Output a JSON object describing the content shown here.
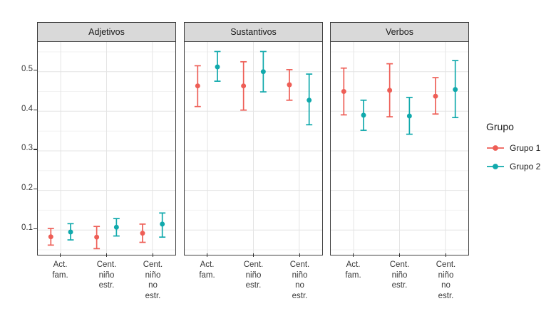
{
  "chart_data": {
    "type": "pointrange",
    "title": "",
    "facets": [
      "Adjetivos",
      "Sustantivos",
      "Verbos"
    ],
    "x_axis": {
      "label": "",
      "categories": [
        "Act.\nfam.",
        "Cent.\nniño\nestr.",
        "Cent.\nniño\nno estr."
      ]
    },
    "y_axis": {
      "label": "",
      "ticks": [
        "0.1",
        "0.2",
        "0.3",
        "0.4",
        "0.5"
      ],
      "tick_values": [
        0.1,
        0.2,
        0.3,
        0.4,
        0.5
      ],
      "minor_tick_values": [
        0.05,
        0.15,
        0.25,
        0.35,
        0.45,
        0.55
      ],
      "range": [
        0.0375,
        0.575
      ]
    },
    "legend": {
      "title": "Grupo",
      "position": "right",
      "entries": [
        {
          "label": "Grupo 1",
          "color": "#EE5E56"
        },
        {
          "label": "Grupo 2",
          "color": "#10A9AC"
        }
      ]
    },
    "series": [
      {
        "name": "Grupo 1",
        "color": "#EE5E56",
        "points_by_facet": [
          [
            {
              "mean": 0.083,
              "lower": 0.062,
              "upper": 0.104
            },
            {
              "mean": 0.082,
              "lower": 0.053,
              "upper": 0.109
            },
            {
              "mean": 0.092,
              "lower": 0.069,
              "upper": 0.115
            }
          ],
          [
            {
              "mean": 0.464,
              "lower": 0.412,
              "upper": 0.515
            },
            {
              "mean": 0.464,
              "lower": 0.403,
              "upper": 0.525
            },
            {
              "mean": 0.467,
              "lower": 0.428,
              "upper": 0.505
            }
          ],
          [
            {
              "mean": 0.45,
              "lower": 0.391,
              "upper": 0.509
            },
            {
              "mean": 0.453,
              "lower": 0.386,
              "upper": 0.52
            },
            {
              "mean": 0.438,
              "lower": 0.393,
              "upper": 0.485
            }
          ]
        ]
      },
      {
        "name": "Grupo 2",
        "color": "#10A9AC",
        "points_by_facet": [
          [
            {
              "mean": 0.095,
              "lower": 0.075,
              "upper": 0.116
            },
            {
              "mean": 0.107,
              "lower": 0.085,
              "upper": 0.129
            },
            {
              "mean": 0.115,
              "lower": 0.082,
              "upper": 0.143
            }
          ],
          [
            {
              "mean": 0.512,
              "lower": 0.476,
              "upper": 0.551
            },
            {
              "mean": 0.5,
              "lower": 0.449,
              "upper": 0.551
            },
            {
              "mean": 0.428,
              "lower": 0.366,
              "upper": 0.494
            }
          ],
          [
            {
              "mean": 0.39,
              "lower": 0.352,
              "upper": 0.428
            },
            {
              "mean": 0.388,
              "lower": 0.342,
              "upper": 0.435
            },
            {
              "mean": 0.455,
              "lower": 0.384,
              "upper": 0.528
            }
          ]
        ]
      }
    ],
    "colors": {
      "strip_fill": "#D9D9D9",
      "panel_border": "#404040",
      "grid_major": "#E4E4E4",
      "grid_minor": "#F2F2F2"
    }
  }
}
